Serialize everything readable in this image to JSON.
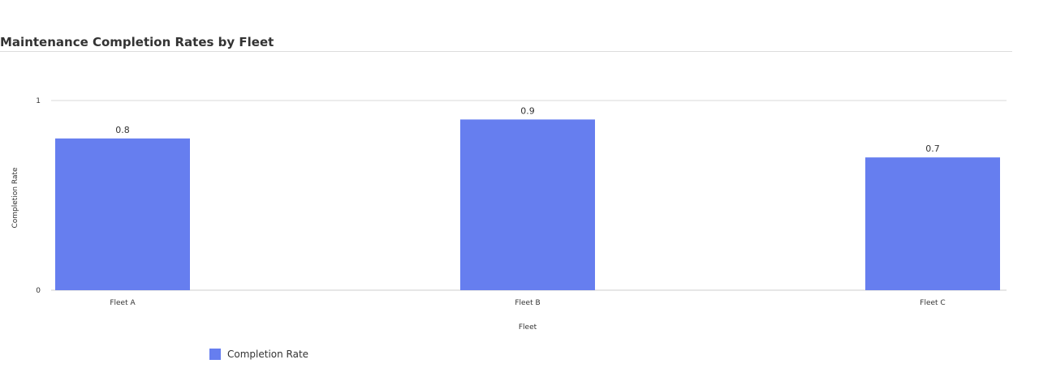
{
  "chart_data": {
    "type": "bar",
    "title": "Maintenance Completion Rates by Fleet",
    "xlabel": "Fleet",
    "ylabel": "Completion Rate",
    "categories": [
      "Fleet A",
      "Fleet B",
      "Fleet C"
    ],
    "series": [
      {
        "name": "Completion Rate",
        "values": [
          0.8,
          0.9,
          0.7
        ],
        "color": "#667eef"
      }
    ],
    "ylim": [
      0,
      1
    ],
    "yticks": [
      "0",
      "1"
    ],
    "data_labels": [
      "0.8",
      "0.9",
      "0.7"
    ],
    "grid": true,
    "legend_position": "bottom-left"
  }
}
